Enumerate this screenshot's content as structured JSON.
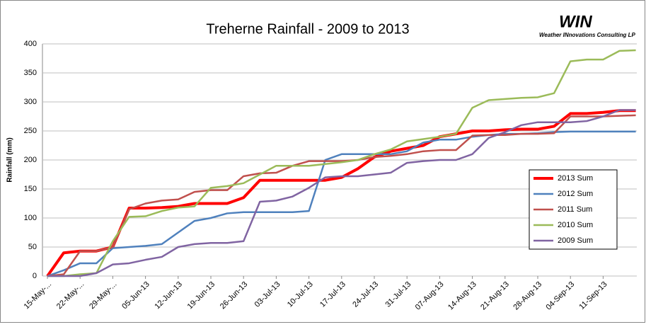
{
  "chart_data": {
    "type": "line",
    "title": "Treherne Rainfall - 2009 to 2013",
    "logo_title": "WIN",
    "logo_subtitle": "Weather INnovations Consulting LP",
    "y_label": "Rainfall (mm)",
    "categories": [
      "15-May-...",
      null,
      "22-May-...",
      null,
      "29-May-...",
      null,
      "05-Jun-13",
      null,
      "12-Jun-13",
      null,
      "19-Jun-13",
      null,
      "26-Jun-13",
      null,
      "03-Jul-13",
      null,
      "10-Jul-13",
      null,
      "17-Jul-13",
      null,
      "24-Jul-13",
      null,
      "31-Jul-13",
      null,
      "07-Aug-13",
      null,
      "14-Aug-13",
      null,
      "21-Aug-13",
      null,
      "28-Aug-13",
      null,
      "04-Sep-13",
      null,
      "11-Sep-13",
      null,
      null
    ],
    "ylim": [
      0,
      400
    ],
    "yticks": [
      0,
      50,
      100,
      150,
      200,
      250,
      300,
      350,
      400
    ],
    "grid": true,
    "legend": "right",
    "series": [
      {
        "name": "2013 Sum",
        "color": "#ff0000",
        "values": [
          0,
          40,
          43,
          43,
          50,
          117,
          117,
          118,
          120,
          125,
          125,
          125,
          135,
          165,
          165,
          165,
          165,
          165,
          170,
          185,
          205,
          215,
          220,
          225,
          240,
          245,
          250,
          250,
          252,
          253,
          253,
          258,
          280,
          280,
          282,
          285,
          285
        ]
      },
      {
        "name": "2012 Sum",
        "color": "#4f81bd",
        "values": [
          0,
          10,
          22,
          22,
          48,
          50,
          52,
          55,
          75,
          95,
          100,
          108,
          110,
          110,
          110,
          110,
          112,
          200,
          210,
          210,
          210,
          210,
          215,
          230,
          235,
          235,
          240,
          243,
          245,
          245,
          246,
          248,
          249,
          249,
          249,
          249,
          249
        ]
      },
      {
        "name": "2011 Sum",
        "color": "#c0504d",
        "values": [
          0,
          3,
          43,
          43,
          50,
          115,
          125,
          130,
          132,
          145,
          148,
          148,
          172,
          177,
          178,
          190,
          198,
          198,
          198,
          200,
          205,
          207,
          210,
          215,
          217,
          217,
          242,
          243,
          243,
          245,
          245,
          246,
          275,
          275,
          275,
          276,
          277
        ]
      },
      {
        "name": "2010 Sum",
        "color": "#9bbb59",
        "values": [
          0,
          0,
          3,
          5,
          60,
          102,
          103,
          112,
          118,
          120,
          152,
          155,
          160,
          175,
          190,
          190,
          190,
          193,
          196,
          200,
          210,
          218,
          232,
          236,
          240,
          245,
          290,
          303,
          305,
          307,
          308,
          315,
          370,
          373,
          373,
          388,
          389
        ]
      },
      {
        "name": "2009 Sum",
        "color": "#8064a2",
        "values": [
          0,
          0,
          0,
          5,
          20,
          22,
          28,
          33,
          50,
          55,
          57,
          57,
          60,
          128,
          130,
          137,
          152,
          170,
          172,
          172,
          175,
          178,
          195,
          198,
          200,
          200,
          210,
          238,
          248,
          260,
          265,
          265,
          265,
          267,
          275,
          286,
          286
        ]
      }
    ]
  }
}
